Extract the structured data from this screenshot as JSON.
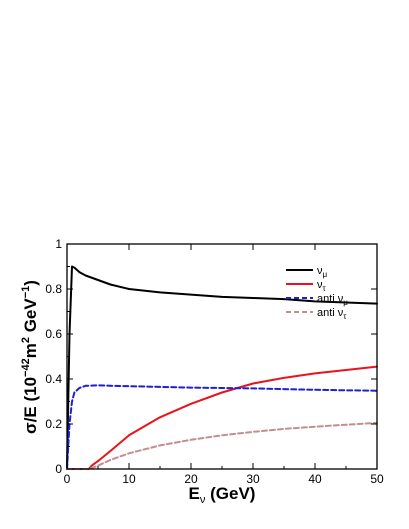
{
  "chart_data": {
    "type": "line",
    "title": "",
    "xlabel": "E",
    "xlabel_sub": "ν",
    "xlabel_unit": " (GeV)",
    "ylabel": "σ/E (10",
    "ylabel_exp1": "−42",
    "ylabel_mid": "m",
    "ylabel_exp2": "2",
    "ylabel_tail": " GeV",
    "ylabel_exp3": "−1",
    "ylabel_end": ")",
    "xlim": [
      0,
      50
    ],
    "ylim": [
      0,
      1
    ],
    "x_ticks": [
      0,
      10,
      20,
      30,
      40,
      50
    ],
    "y_ticks": [
      0,
      0.2,
      0.4,
      0.6,
      0.8,
      1
    ],
    "x_tick_labels": [
      "0",
      "10",
      "20",
      "30",
      "40",
      "50"
    ],
    "y_tick_labels": [
      "0",
      "0.2",
      "0.4",
      "0.6",
      "0.8",
      "1"
    ],
    "grid": false,
    "legend_position": "top-right",
    "series": [
      {
        "name": "ν",
        "name_sub": "μ",
        "color": "#000000",
        "dash": "solid",
        "x": [
          0.4,
          0.8,
          1.2,
          2,
          3,
          5,
          7,
          10,
          15,
          20,
          25,
          30,
          35,
          40,
          45,
          50
        ],
        "y": [
          0.6,
          0.9,
          0.895,
          0.875,
          0.86,
          0.84,
          0.82,
          0.8,
          0.785,
          0.775,
          0.765,
          0.76,
          0.755,
          0.745,
          0.74,
          0.735
        ]
      },
      {
        "name": "ν",
        "name_sub": "τ",
        "color": "#e8141b",
        "dash": "solid",
        "x": [
          3.5,
          4,
          5,
          7,
          10,
          15,
          20,
          25,
          30,
          35,
          40,
          45,
          50
        ],
        "y": [
          0.0,
          0.015,
          0.035,
          0.08,
          0.15,
          0.23,
          0.29,
          0.34,
          0.38,
          0.405,
          0.425,
          0.44,
          0.455
        ]
      },
      {
        "name": "anti ν",
        "name_sub": "μ",
        "color": "#1f1fd6",
        "dash": "dashed",
        "x": [
          0.4,
          0.8,
          1.2,
          2,
          3,
          5,
          7,
          10,
          15,
          20,
          25,
          30,
          35,
          40,
          45,
          50
        ],
        "y": [
          0.2,
          0.3,
          0.34,
          0.36,
          0.37,
          0.372,
          0.37,
          0.368,
          0.365,
          0.362,
          0.36,
          0.358,
          0.355,
          0.352,
          0.35,
          0.348
        ]
      },
      {
        "name": "anti ν",
        "name_sub": "τ",
        "color": "#c48e8e",
        "dash": "dashed",
        "x": [
          3.5,
          4,
          5,
          7,
          10,
          15,
          20,
          25,
          30,
          35,
          40,
          45,
          50
        ],
        "y": [
          0.0,
          0.005,
          0.015,
          0.04,
          0.07,
          0.105,
          0.13,
          0.15,
          0.165,
          0.178,
          0.188,
          0.197,
          0.205
        ]
      }
    ]
  }
}
